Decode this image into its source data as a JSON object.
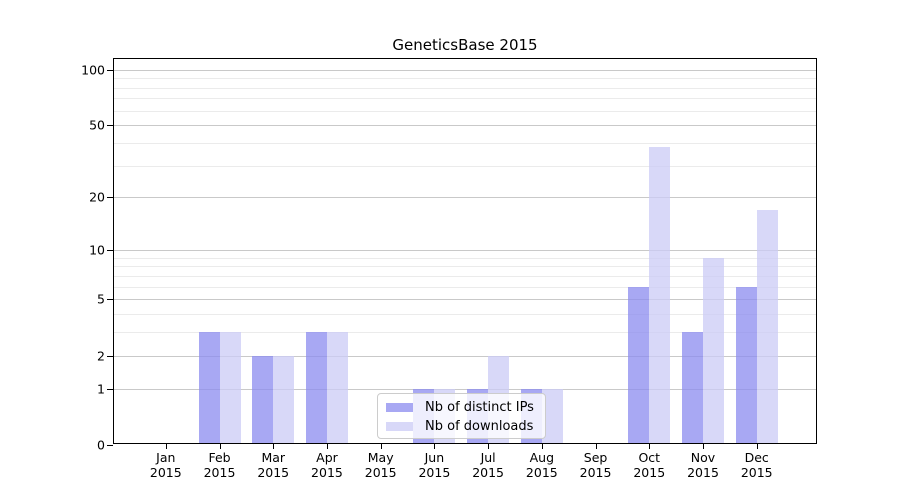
{
  "chart_data": {
    "type": "bar",
    "title": "GeneticsBase 2015",
    "scale": "log1p",
    "grid": "on",
    "categories": [
      "Jan 2015",
      "Feb 2015",
      "Mar 2015",
      "Apr 2015",
      "May 2015",
      "Jun 2015",
      "Jul 2015",
      "Aug 2015",
      "Sep 2015",
      "Oct 2015",
      "Nov 2015",
      "Dec 2015"
    ],
    "series": [
      {
        "name": "Nb of distinct IPs",
        "color_hex": "#a8a8f3",
        "color_rgba": "rgba(139,139,239,0.75)",
        "values": [
          0,
          3,
          2,
          3,
          0,
          1,
          1,
          1,
          0,
          6,
          3,
          6
        ]
      },
      {
        "name": "Nb of downloads",
        "color_hex": "#d8d8f8",
        "color_rgba": "rgba(203,203,246,0.75)",
        "values": [
          0,
          3,
          2,
          3,
          0,
          1,
          2,
          1,
          0,
          38,
          9,
          17
        ]
      }
    ],
    "yticks": [
      0,
      1,
      2,
      5,
      10,
      20,
      50,
      100
    ],
    "grid_values": {
      "major": [
        1,
        2,
        5,
        10,
        20,
        50,
        100
      ],
      "minor": [
        3,
        4,
        6,
        7,
        8,
        9,
        30,
        40,
        60,
        70,
        80,
        90
      ]
    },
    "ylim": [
      0,
      116
    ],
    "legend_position": "lower-center",
    "axis_color": "#000000",
    "major_grid_color": "#c9c9c9",
    "minor_grid_color": "#ebebeb"
  }
}
